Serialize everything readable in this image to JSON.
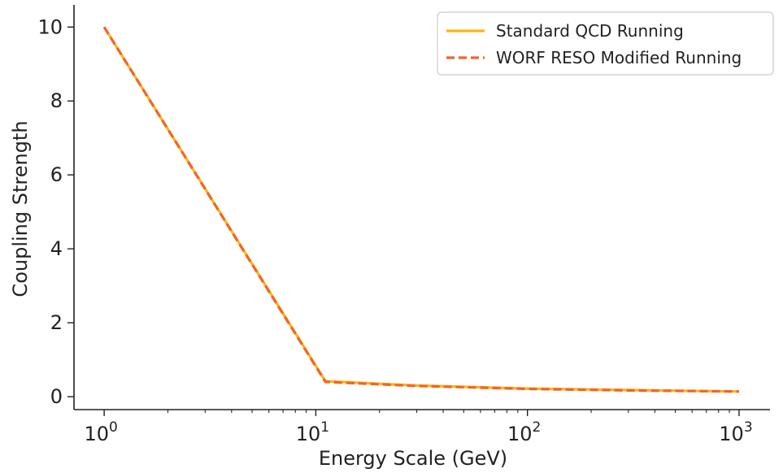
{
  "chart_data": {
    "type": "line",
    "title": "",
    "xlabel": "Energy Scale (GeV)",
    "ylabel": "Coupling Strength",
    "xscale": "log",
    "xlim": [
      0.72,
      1400
    ],
    "ylim": [
      -0.35,
      10.6
    ],
    "x_ticks": [
      {
        "value": 1,
        "base": "10",
        "exp": "0"
      },
      {
        "value": 10,
        "base": "10",
        "exp": "1"
      },
      {
        "value": 100,
        "base": "10",
        "exp": "2"
      },
      {
        "value": 1000,
        "base": "10",
        "exp": "3"
      }
    ],
    "y_ticks": [
      {
        "value": 0,
        "label": "0"
      },
      {
        "value": 2,
        "label": "2"
      },
      {
        "value": 4,
        "label": "4"
      },
      {
        "value": 6,
        "label": "6"
      },
      {
        "value": 8,
        "label": "8"
      },
      {
        "value": 10,
        "label": "10"
      }
    ],
    "grid": false,
    "legend_position": "top-right",
    "series": [
      {
        "name": "Standard QCD Running",
        "style": "solid",
        "color": "#FDB515",
        "x": [
          1,
          11.1,
          30,
          100,
          300,
          1000
        ],
        "y": [
          10.0,
          0.42,
          0.3,
          0.22,
          0.18,
          0.14
        ]
      },
      {
        "name": "WORF RESO Modified Running",
        "style": "dashed",
        "color": "#F0652B",
        "x": [
          1,
          11.1,
          30,
          100,
          300,
          1000
        ],
        "y": [
          10.0,
          0.4,
          0.29,
          0.21,
          0.17,
          0.14
        ]
      }
    ]
  }
}
